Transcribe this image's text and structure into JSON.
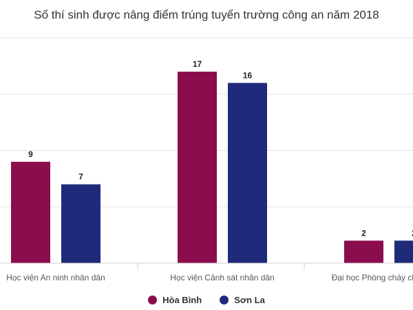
{
  "chart_data": {
    "type": "bar",
    "title": "Số thí sinh được nâng điểm trúng tuyển trường công an năm 2018",
    "categories": [
      "Học viện An ninh nhân dân",
      "Học viện Cảnh sát nhân dân",
      "Đại học Phòng cháy chữa cháy"
    ],
    "series": [
      {
        "name": "Hòa Bình",
        "color": "#8b0d4d",
        "values": [
          9,
          17,
          2
        ]
      },
      {
        "name": "Sơn La",
        "color": "#1f2a7a",
        "values": [
          7,
          16,
          2
        ]
      }
    ],
    "ylim": [
      0,
      20
    ],
    "grid": true,
    "legend": "bottom-center"
  }
}
